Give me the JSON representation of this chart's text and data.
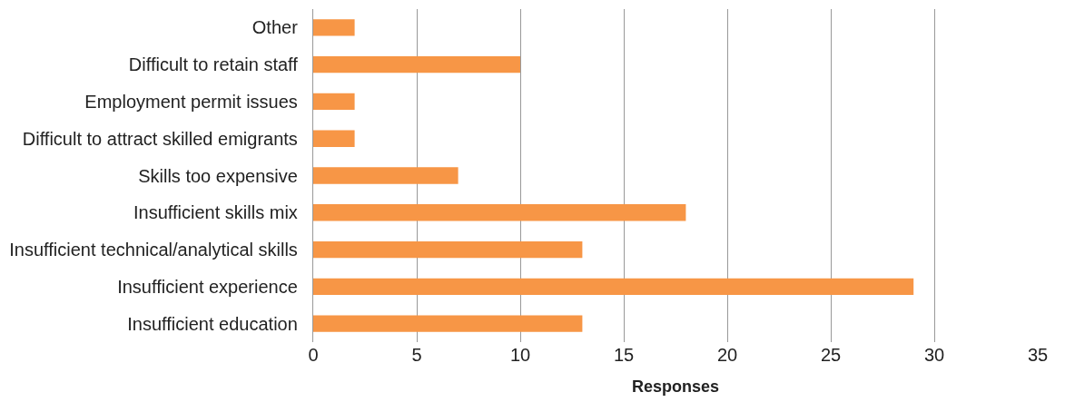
{
  "chart_data": {
    "type": "bar",
    "orientation": "horizontal",
    "xlabel": "Responses",
    "categories": [
      "Other",
      "Difficult to retain staff",
      "Employment permit issues",
      "Difficult to attract skilled emigrants",
      "Skills too expensive",
      "Insufficient skills mix",
      "Insufficient technical/analytical skills",
      "Insufficient experience",
      "Insufficient education"
    ],
    "values": [
      2,
      10,
      2,
      2,
      7,
      18,
      13,
      29,
      13
    ],
    "color": "#f79646",
    "xlim": [
      0,
      35
    ],
    "xticks": [
      0,
      5,
      10,
      15,
      20,
      25,
      30,
      35
    ],
    "grid": "x"
  }
}
